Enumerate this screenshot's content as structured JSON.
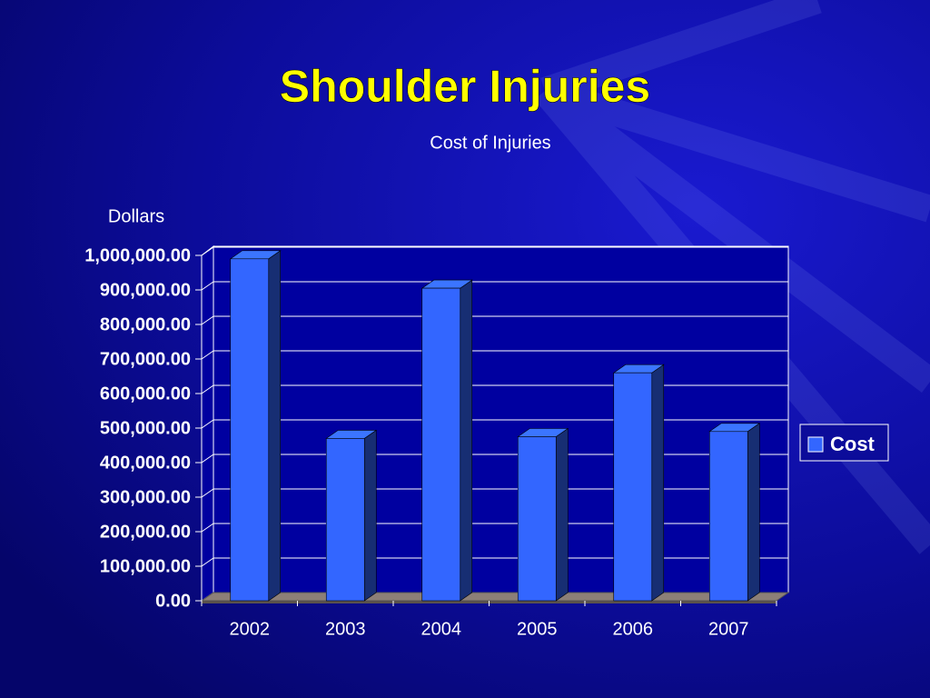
{
  "chart_data": {
    "type": "bar3d",
    "title": "Shoulder Injuries",
    "subtitle": "Cost of Injuries",
    "y_label": "Dollars",
    "categories": [
      "2002",
      "2003",
      "2004",
      "2005",
      "2006",
      "2007"
    ],
    "series": [
      {
        "name": "Cost",
        "color": "#3366ff",
        "values": [
          990000,
          470000,
          905000,
          475000,
          660000,
          490000
        ]
      }
    ],
    "ylim": [
      0,
      1000000
    ],
    "yticks": [
      {
        "value": 0,
        "label": "0.00"
      },
      {
        "value": 100000,
        "label": "100,000.00"
      },
      {
        "value": 200000,
        "label": "200,000.00"
      },
      {
        "value": 300000,
        "label": "300,000.00"
      },
      {
        "value": 400000,
        "label": "400,000.00"
      },
      {
        "value": 500000,
        "label": "500,000.00"
      },
      {
        "value": 600000,
        "label": "600,000.00"
      },
      {
        "value": 700000,
        "label": "700,000.00"
      },
      {
        "value": 800000,
        "label": "800,000.00"
      },
      {
        "value": 900000,
        "label": "900,000.00"
      },
      {
        "value": 1000000,
        "label": "1,000,000.00"
      }
    ],
    "grid": true,
    "legend": "right"
  }
}
